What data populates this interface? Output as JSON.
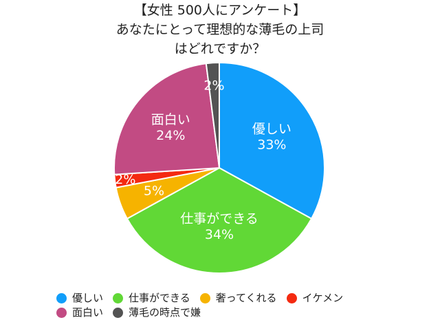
{
  "title_lines": [
    "【女性 500人にアンケート】",
    "あなたにとって理想的な薄毛の上司",
    "はどれですか？"
  ],
  "chart_data": {
    "type": "pie",
    "title": "【女性 500人にアンケート】 あなたにとって理想的な薄毛の上司 はどれですか？",
    "slices": [
      {
        "name": "優しい",
        "value": 33,
        "label": "優しい",
        "percent_label": "33%",
        "color": "#119EFA"
      },
      {
        "name": "仕事ができる",
        "value": 34,
        "label": "仕事ができる",
        "percent_label": "34%",
        "color": "#61D836"
      },
      {
        "name": "奢ってくれる",
        "value": 5,
        "label": "",
        "percent_label": "5%",
        "color": "#F6B300"
      },
      {
        "name": "イケメン",
        "value": 2,
        "label": "",
        "percent_label": "2%",
        "color": "#F42A11"
      },
      {
        "name": "面白い",
        "value": 24,
        "label": "面白い",
        "percent_label": "24%",
        "color": "#C24B83"
      },
      {
        "name": "薄毛の時点で嫌",
        "value": 2,
        "label": "",
        "percent_label": "2%",
        "color": "#535353"
      }
    ],
    "legend_position": "bottom",
    "legend_rows": [
      [
        "優しい",
        "仕事ができる",
        "奢ってくれる",
        "イケメン"
      ],
      [
        "面白い",
        "薄毛の時点で嫌"
      ]
    ]
  }
}
